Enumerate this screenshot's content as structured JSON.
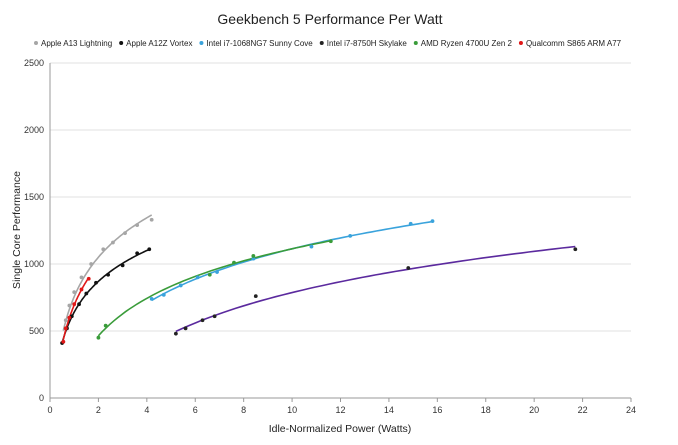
{
  "chart_data": {
    "type": "scatter",
    "title": "Geekbench 5 Performance Per Watt",
    "xlabel": "Idle-Normalized Power (Watts)",
    "ylabel": "Single Core Performance",
    "xlim": [
      0,
      24
    ],
    "ylim": [
      0,
      2500
    ],
    "xticks": [
      0,
      2,
      4,
      6,
      8,
      10,
      12,
      14,
      16,
      18,
      20,
      22,
      24
    ],
    "yticks": [
      0,
      500,
      1000,
      1500,
      2000,
      2500
    ],
    "grid": "horizontal",
    "legend_position": "top",
    "trendlines": true,
    "series": [
      {
        "name": "Apple A13 Lightning",
        "color": "#a6a6a6",
        "x": [
          0.55,
          0.65,
          0.8,
          1.0,
          1.3,
          1.7,
          2.2,
          2.6,
          3.1,
          3.6,
          4.2
        ],
        "y": [
          420,
          580,
          690,
          790,
          900,
          1000,
          1110,
          1160,
          1230,
          1290,
          1330
        ]
      },
      {
        "name": "Apple A12Z Vortex",
        "color": "#111111",
        "x": [
          0.5,
          0.7,
          0.9,
          1.2,
          1.5,
          1.9,
          2.4,
          3.0,
          3.6,
          4.1
        ],
        "y": [
          410,
          520,
          610,
          700,
          780,
          860,
          920,
          990,
          1080,
          1110
        ]
      },
      {
        "name": "Intel i7-1068NG7 Sunny Cove",
        "color": "#3aa3dc",
        "x": [
          4.2,
          4.7,
          5.4,
          6.1,
          6.9,
          8.4,
          10.8,
          12.4,
          14.9,
          15.8
        ],
        "y": [
          740,
          770,
          840,
          900,
          940,
          1040,
          1130,
          1210,
          1300,
          1320
        ]
      },
      {
        "name": "Intel i7-8750H Skylake",
        "color": "#222222",
        "x": [
          5.2,
          5.6,
          6.3,
          6.8,
          8.5,
          14.8,
          21.7
        ],
        "y": [
          480,
          520,
          580,
          610,
          760,
          970,
          1110
        ]
      },
      {
        "name": "AMD Ryzen 4700U Zen 2",
        "color": "#3a9c3a",
        "x": [
          2.0,
          2.3,
          6.6,
          7.6,
          8.4,
          11.6
        ],
        "y": [
          450,
          540,
          920,
          1010,
          1060,
          1170
        ]
      },
      {
        "name": "Qualcomm S865 ARM A77",
        "color": "#e01818",
        "x": [
          0.55,
          0.65,
          0.8,
          1.0,
          1.3,
          1.6
        ],
        "y": [
          420,
          520,
          600,
          700,
          810,
          890
        ]
      }
    ],
    "fit_colors": [
      "#a6a6a6",
      "#111111",
      "#3aa3dc",
      "#5b2a9e",
      "#3a9c3a",
      "#e01818"
    ]
  }
}
